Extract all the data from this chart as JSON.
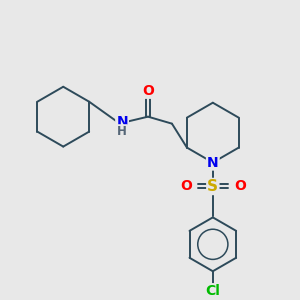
{
  "background_color": "#e8e8e8",
  "bond_color": "#2d4a5a",
  "atom_colors": {
    "O": "#ff0000",
    "N": "#0000ee",
    "S": "#ccaa00",
    "Cl": "#00bb00",
    "H": "#556677",
    "C": "#2d4a5a"
  },
  "figsize": [
    3.0,
    3.0
  ],
  "dpi": 100,
  "xlim": [
    0,
    300
  ],
  "ylim": [
    0,
    300
  ]
}
